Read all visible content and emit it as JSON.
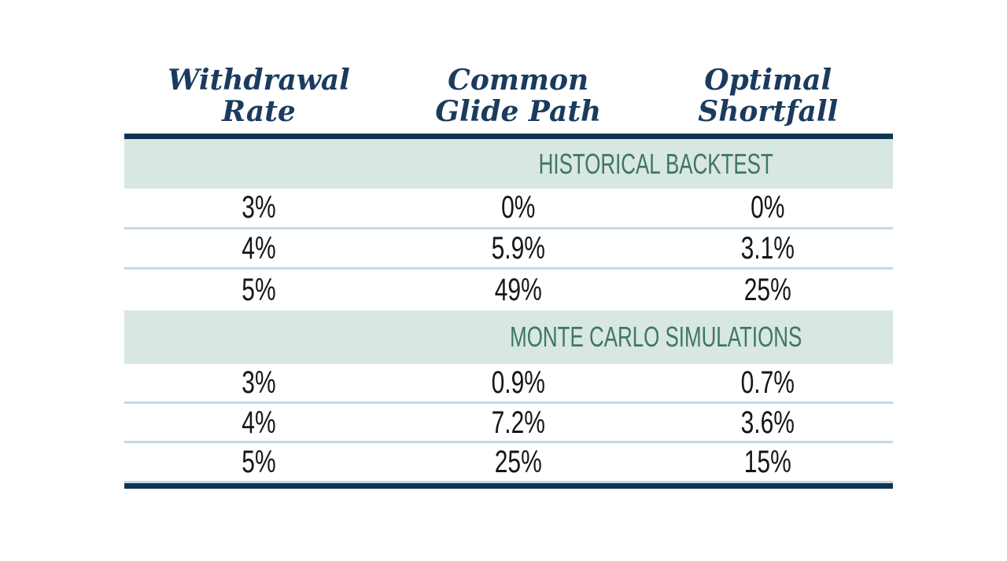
{
  "page": {
    "background": "#ffffff"
  },
  "colors": {
    "header_text": "#1a3b5e",
    "rule_navy": "#11344f",
    "band_background": "#d8e7e1",
    "band_text": "#3f7569",
    "row_separator": "#c3d8e6",
    "cell_text": "#161616"
  },
  "chart_data": {
    "type": "table",
    "title": "",
    "columns": [
      "Withdrawal Rate",
      "Common Glide Path",
      "Optimal Shortfall"
    ],
    "header_lines": [
      {
        "line1": "Withdrawal",
        "line2": "Rate"
      },
      {
        "line1": "Common",
        "line2": "Glide Path"
      },
      {
        "line1": "Optimal",
        "line2": "Shortfall"
      }
    ],
    "sections": [
      {
        "title": "HISTORICAL BACKTEST",
        "rows": [
          [
            "3%",
            "0%",
            "0%"
          ],
          [
            "4%",
            "5.9%",
            "3.1%"
          ],
          [
            "5%",
            "49%",
            "25%"
          ]
        ]
      },
      {
        "title": "MONTE CARLO SIMULATIONS",
        "rows": [
          [
            "3%",
            "0.9%",
            "0.7%"
          ],
          [
            "4%",
            "7.2%",
            "3.6%"
          ],
          [
            "5%",
            "25%",
            "15%"
          ]
        ]
      }
    ],
    "layout": {
      "grid": "off",
      "section_title_spans": "columns 2-3"
    }
  }
}
